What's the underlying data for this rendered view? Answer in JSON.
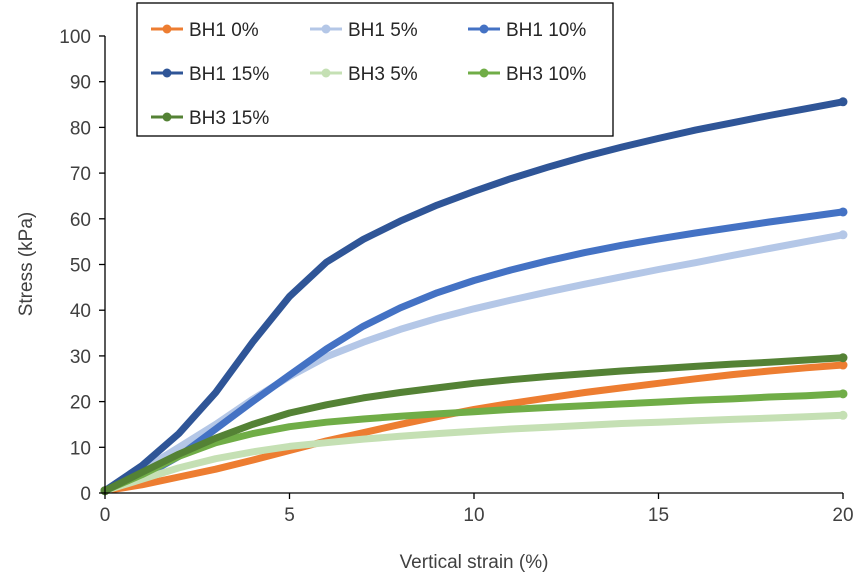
{
  "chart_data": {
    "type": "line",
    "title": "",
    "xlabel": "Vertical strain (%)",
    "ylabel": "Stress (kPa)",
    "xlim": [
      0,
      20
    ],
    "ylim": [
      0,
      100
    ],
    "x_ticks": [
      0,
      5,
      10,
      15,
      20
    ],
    "y_ticks": [
      0,
      10,
      20,
      30,
      40,
      50,
      60,
      70,
      80,
      90,
      100
    ],
    "grid": false,
    "legend_position": "top-left",
    "series": [
      {
        "name": "BH1 0%",
        "color": "#ED7D31",
        "points": [
          [
            0,
            0.5
          ],
          [
            1,
            1.8
          ],
          [
            2,
            3.5
          ],
          [
            3,
            5.2
          ],
          [
            4,
            7.2
          ],
          [
            5,
            9.3
          ],
          [
            6,
            11.4
          ],
          [
            7,
            13.2
          ],
          [
            8,
            15
          ],
          [
            9,
            16.7
          ],
          [
            10,
            18.3
          ],
          [
            11,
            19.6
          ],
          [
            12,
            20.8
          ],
          [
            13,
            22
          ],
          [
            14,
            23
          ],
          [
            15,
            24
          ],
          [
            16,
            25
          ],
          [
            17,
            25.9
          ],
          [
            18,
            26.7
          ],
          [
            19,
            27.4
          ],
          [
            20,
            28
          ]
        ]
      },
      {
        "name": "BH1 5%",
        "color": "#B4C7E7",
        "points": [
          [
            0,
            0.5
          ],
          [
            1,
            5
          ],
          [
            2,
            10
          ],
          [
            3,
            15
          ],
          [
            4,
            20.5
          ],
          [
            5,
            25.5
          ],
          [
            6,
            29.8
          ],
          [
            7,
            33
          ],
          [
            8,
            35.8
          ],
          [
            9,
            38.2
          ],
          [
            10,
            40.3
          ],
          [
            11,
            42.2
          ],
          [
            12,
            44
          ],
          [
            13,
            45.7
          ],
          [
            14,
            47.3
          ],
          [
            15,
            48.9
          ],
          [
            16,
            50.4
          ],
          [
            17,
            52
          ],
          [
            18,
            53.5
          ],
          [
            19,
            55
          ],
          [
            20,
            56.5
          ]
        ]
      },
      {
        "name": "BH1 10%",
        "color": "#4472C4",
        "points": [
          [
            0,
            0.5
          ],
          [
            1,
            3.5
          ],
          [
            2,
            8
          ],
          [
            3,
            14
          ],
          [
            4,
            20
          ],
          [
            5,
            25.8
          ],
          [
            6,
            31.5
          ],
          [
            7,
            36.5
          ],
          [
            8,
            40.5
          ],
          [
            9,
            43.8
          ],
          [
            10,
            46.5
          ],
          [
            11,
            48.8
          ],
          [
            12,
            50.8
          ],
          [
            13,
            52.6
          ],
          [
            14,
            54.2
          ],
          [
            15,
            55.6
          ],
          [
            16,
            56.9
          ],
          [
            17,
            58.1
          ],
          [
            18,
            59.3
          ],
          [
            19,
            60.4
          ],
          [
            20,
            61.5
          ]
        ]
      },
      {
        "name": "BH1 15%",
        "color": "#2F5597",
        "points": [
          [
            0,
            0.5
          ],
          [
            1,
            6
          ],
          [
            2,
            13
          ],
          [
            3,
            22
          ],
          [
            4,
            33
          ],
          [
            5,
            43
          ],
          [
            6,
            50.5
          ],
          [
            7,
            55.5
          ],
          [
            8,
            59.5
          ],
          [
            9,
            63
          ],
          [
            10,
            66
          ],
          [
            11,
            68.8
          ],
          [
            12,
            71.3
          ],
          [
            13,
            73.6
          ],
          [
            14,
            75.7
          ],
          [
            15,
            77.6
          ],
          [
            16,
            79.4
          ],
          [
            17,
            81
          ],
          [
            18,
            82.6
          ],
          [
            19,
            84.1
          ],
          [
            20,
            85.6
          ]
        ]
      },
      {
        "name": "BH3 5%",
        "color": "#C5E0B4",
        "points": [
          [
            0,
            0.5
          ],
          [
            1,
            3
          ],
          [
            2,
            5.5
          ],
          [
            3,
            7.5
          ],
          [
            4,
            9
          ],
          [
            5,
            10.2
          ],
          [
            6,
            11
          ],
          [
            7,
            11.8
          ],
          [
            8,
            12.4
          ],
          [
            9,
            13
          ],
          [
            10,
            13.5
          ],
          [
            11,
            14
          ],
          [
            12,
            14.4
          ],
          [
            13,
            14.8
          ],
          [
            14,
            15.2
          ],
          [
            15,
            15.5
          ],
          [
            16,
            15.8
          ],
          [
            17,
            16.1
          ],
          [
            18,
            16.4
          ],
          [
            19,
            16.7
          ],
          [
            20,
            17
          ]
        ]
      },
      {
        "name": "BH3 10%",
        "color": "#70AD47",
        "points": [
          [
            0,
            0.5
          ],
          [
            1,
            4
          ],
          [
            2,
            8
          ],
          [
            3,
            11
          ],
          [
            4,
            13
          ],
          [
            5,
            14.5
          ],
          [
            6,
            15.5
          ],
          [
            7,
            16.2
          ],
          [
            8,
            16.8
          ],
          [
            9,
            17.3
          ],
          [
            10,
            17.8
          ],
          [
            11,
            18.3
          ],
          [
            12,
            18.7
          ],
          [
            13,
            19.1
          ],
          [
            14,
            19.5
          ],
          [
            15,
            19.9
          ],
          [
            16,
            20.3
          ],
          [
            17,
            20.6
          ],
          [
            18,
            21
          ],
          [
            19,
            21.3
          ],
          [
            20,
            21.7
          ]
        ]
      },
      {
        "name": "BH3 15%",
        "color": "#548235",
        "points": [
          [
            0,
            0.5
          ],
          [
            1,
            4.5
          ],
          [
            2,
            8.5
          ],
          [
            3,
            12
          ],
          [
            4,
            15
          ],
          [
            5,
            17.5
          ],
          [
            6,
            19.3
          ],
          [
            7,
            20.8
          ],
          [
            8,
            22
          ],
          [
            9,
            23
          ],
          [
            10,
            24
          ],
          [
            11,
            24.8
          ],
          [
            12,
            25.5
          ],
          [
            13,
            26.1
          ],
          [
            14,
            26.7
          ],
          [
            15,
            27.2
          ],
          [
            16,
            27.7
          ],
          [
            17,
            28.2
          ],
          [
            18,
            28.6
          ],
          [
            19,
            29.1
          ],
          [
            20,
            29.6
          ]
        ]
      }
    ]
  }
}
